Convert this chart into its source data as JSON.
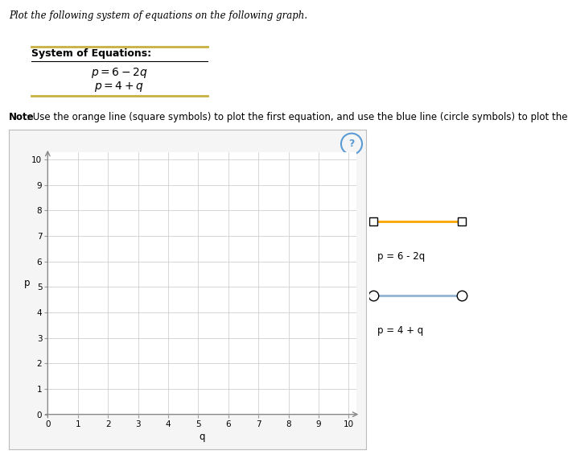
{
  "title_text": "Plot the following system of equations on the following graph.",
  "system_label": "System of Equations:",
  "eq1": "$p=6-2q$",
  "eq2": "$p=4+q$",
  "note_bold": "Note",
  "note_rest": ": Use the orange line (square symbols) to plot the first equation, and use the blue line (circle symbols) to plot the second equation.",
  "xlim": [
    0,
    10
  ],
  "ylim": [
    0,
    10
  ],
  "xlabel": "q",
  "ylabel": "p",
  "xticks": [
    0,
    1,
    2,
    3,
    4,
    5,
    6,
    7,
    8,
    9,
    10
  ],
  "yticks": [
    0,
    1,
    2,
    3,
    4,
    5,
    6,
    7,
    8,
    9,
    10
  ],
  "line1_color": "#FFA500",
  "line1_label": "p = 6 - 2q",
  "line2_color": "#92B4D4",
  "line2_label": "p = 4 + q",
  "bg_color": "#FFFFFF",
  "grid_color": "#D0D0D0",
  "panel_bg": "#F5F5F5",
  "question_circle_color": "#5B9BD5",
  "box_border_color": "#BBBBBB",
  "header_line_color": "#C8B040",
  "title_fontsize": 8.5,
  "note_fontsize": 8.5,
  "eq_fontsize": 10,
  "tick_fontsize": 7.5,
  "legend_fontsize": 8.5,
  "axis_label_fontsize": 8.5
}
